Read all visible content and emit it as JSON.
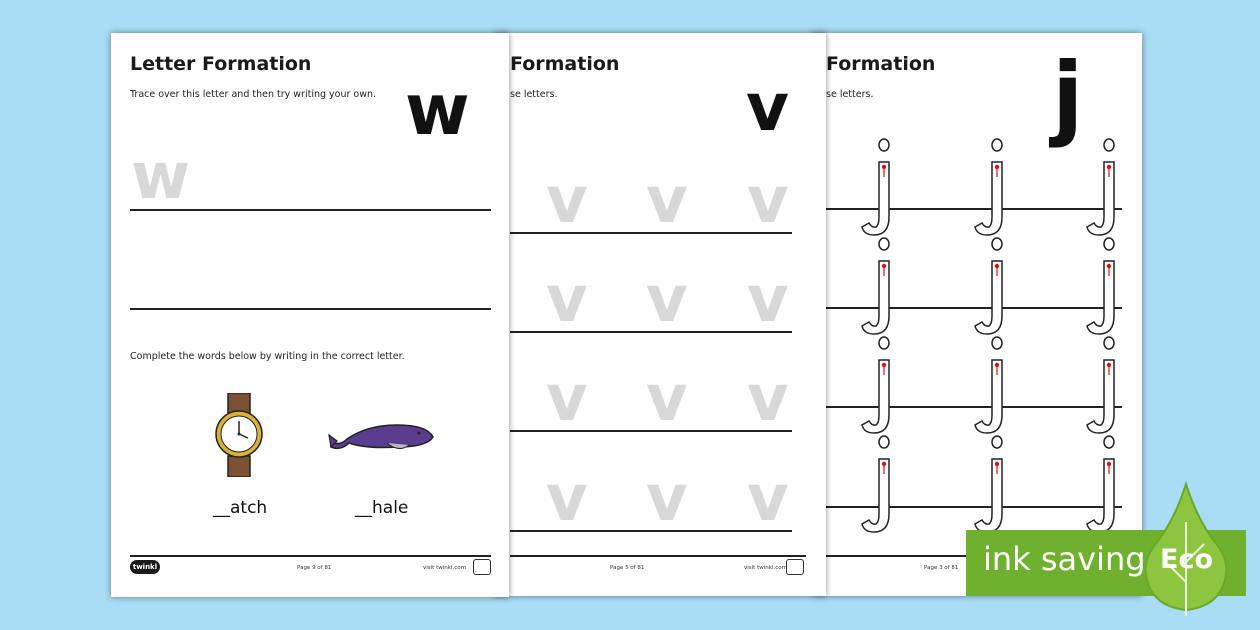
{
  "sheets": {
    "w": {
      "title": "Letter Formation",
      "instruction": "Trace over this letter and then try writing your own.",
      "letter": "w",
      "trace_letter": "w",
      "words_instruction": "Complete the words below by writing in the correct letter.",
      "words": [
        "__atch",
        "__hale"
      ],
      "footer_page": "Page 9 of 81",
      "footer_site": "visit twinkl.com",
      "logo": "twinkl"
    },
    "v": {
      "title": "Formation",
      "instruction": "se letters.",
      "letter": "v",
      "trace_letter": "v",
      "footer_page": "Page 5 of 81",
      "footer_site": "visit twinkl.com"
    },
    "j": {
      "title": "Formation",
      "instruction": "se letters.",
      "letter": "j",
      "footer_page": "Page 3 of 81"
    }
  },
  "badge": {
    "label": "ink saving",
    "eco": "Eco",
    "colors": {
      "bar": "#6fb02e",
      "drop": "#8cc63f"
    }
  },
  "icons": [
    "watch-icon",
    "whale-icon",
    "twinkl-logo",
    "seal-icon",
    "eco-drop-icon",
    "start-dot-icon"
  ]
}
